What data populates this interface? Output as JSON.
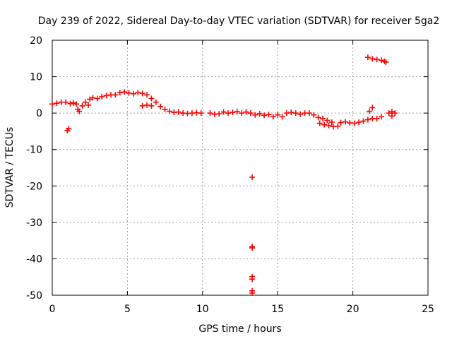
{
  "chart_data": {
    "type": "scatter",
    "title": "Day 239 of 2022, Sidereal Day-to-day VTEC variation (SDTVAR) for receiver 5ga2",
    "xlabel": "GPS time / hours",
    "ylabel": "SDTVAR / TECUs",
    "xlim": [
      0,
      25
    ],
    "ylim": [
      -50,
      20
    ],
    "x_ticks": [
      0,
      5,
      10,
      15,
      20,
      25
    ],
    "y_ticks": [
      -50,
      -40,
      -30,
      -20,
      -10,
      0,
      10,
      20
    ],
    "grid": true,
    "marker": "plus",
    "color": "#ff0000",
    "series": [
      {
        "name": "SDTVAR",
        "points": [
          [
            0.0,
            2.5
          ],
          [
            0.3,
            2.7
          ],
          [
            0.6,
            3.0
          ],
          [
            0.9,
            3.0
          ],
          [
            1.2,
            2.6
          ],
          [
            1.4,
            2.8
          ],
          [
            1.0,
            -4.8
          ],
          [
            1.1,
            -4.3
          ],
          [
            1.6,
            2.5
          ],
          [
            1.7,
            1.0
          ],
          [
            1.8,
            0.5
          ],
          [
            2.0,
            2.0
          ],
          [
            2.2,
            3.0
          ],
          [
            2.4,
            2.2
          ],
          [
            2.5,
            3.8
          ],
          [
            2.7,
            4.2
          ],
          [
            3.0,
            4.0
          ],
          [
            3.3,
            4.5
          ],
          [
            3.6,
            4.8
          ],
          [
            3.9,
            5.0
          ],
          [
            4.2,
            5.0
          ],
          [
            4.5,
            5.6
          ],
          [
            4.8,
            5.8
          ],
          [
            5.1,
            5.5
          ],
          [
            5.4,
            5.3
          ],
          [
            5.7,
            5.6
          ],
          [
            6.0,
            5.4
          ],
          [
            6.3,
            5.0
          ],
          [
            6.6,
            4.0
          ],
          [
            6.9,
            3.0
          ],
          [
            7.2,
            1.8
          ],
          [
            7.5,
            1.0
          ],
          [
            6.0,
            2.0
          ],
          [
            6.3,
            2.2
          ],
          [
            6.6,
            2.0
          ],
          [
            7.8,
            0.5
          ],
          [
            8.1,
            0.2
          ],
          [
            8.4,
            0.3
          ],
          [
            8.7,
            0.0
          ],
          [
            9.0,
            -0.1
          ],
          [
            9.3,
            0.0
          ],
          [
            9.6,
            0.1
          ],
          [
            9.9,
            0.0
          ],
          [
            10.5,
            0.0
          ],
          [
            10.8,
            -0.3
          ],
          [
            11.1,
            -0.2
          ],
          [
            11.4,
            0.3
          ],
          [
            11.7,
            0.0
          ],
          [
            12.0,
            0.2
          ],
          [
            12.3,
            0.4
          ],
          [
            12.6,
            0.0
          ],
          [
            12.9,
            0.3
          ],
          [
            13.2,
            0.0
          ],
          [
            13.3,
            -17.6
          ],
          [
            13.3,
            -36.6
          ],
          [
            13.3,
            -37.0
          ],
          [
            13.3,
            -44.9
          ],
          [
            13.3,
            -45.6
          ],
          [
            13.3,
            -48.8
          ],
          [
            13.3,
            -49.4
          ],
          [
            13.5,
            -0.5
          ],
          [
            13.8,
            -0.2
          ],
          [
            14.1,
            -0.6
          ],
          [
            14.4,
            -0.4
          ],
          [
            14.7,
            -1.0
          ],
          [
            15.0,
            -0.5
          ],
          [
            15.3,
            -1.0
          ],
          [
            15.6,
            0.0
          ],
          [
            15.9,
            0.2
          ],
          [
            16.2,
            0.0
          ],
          [
            16.5,
            -0.3
          ],
          [
            16.8,
            0.0
          ],
          [
            17.1,
            0.0
          ],
          [
            17.4,
            -0.5
          ],
          [
            17.7,
            -1.2
          ],
          [
            18.0,
            -1.5
          ],
          [
            18.3,
            -2.0
          ],
          [
            18.6,
            -2.5
          ],
          [
            17.8,
            -2.8
          ],
          [
            18.1,
            -3.2
          ],
          [
            18.4,
            -3.4
          ],
          [
            18.7,
            -3.7
          ],
          [
            19.0,
            -3.6
          ],
          [
            19.2,
            -2.6
          ],
          [
            19.5,
            -2.4
          ],
          [
            19.8,
            -2.7
          ],
          [
            20.1,
            -2.8
          ],
          [
            20.4,
            -2.5
          ],
          [
            20.7,
            -2.2
          ],
          [
            21.0,
            -1.8
          ],
          [
            21.3,
            -1.5
          ],
          [
            21.6,
            -1.5
          ],
          [
            21.9,
            -1.0
          ],
          [
            21.1,
            0.5
          ],
          [
            21.3,
            1.5
          ],
          [
            22.4,
            0.0
          ],
          [
            22.6,
            0.4
          ],
          [
            22.8,
            0.0
          ],
          [
            22.6,
            -0.8
          ],
          [
            21.0,
            15.3
          ],
          [
            21.3,
            14.9
          ],
          [
            21.6,
            14.7
          ],
          [
            21.9,
            14.5
          ],
          [
            22.1,
            14.2
          ],
          [
            22.2,
            14.0
          ]
        ]
      }
    ]
  }
}
